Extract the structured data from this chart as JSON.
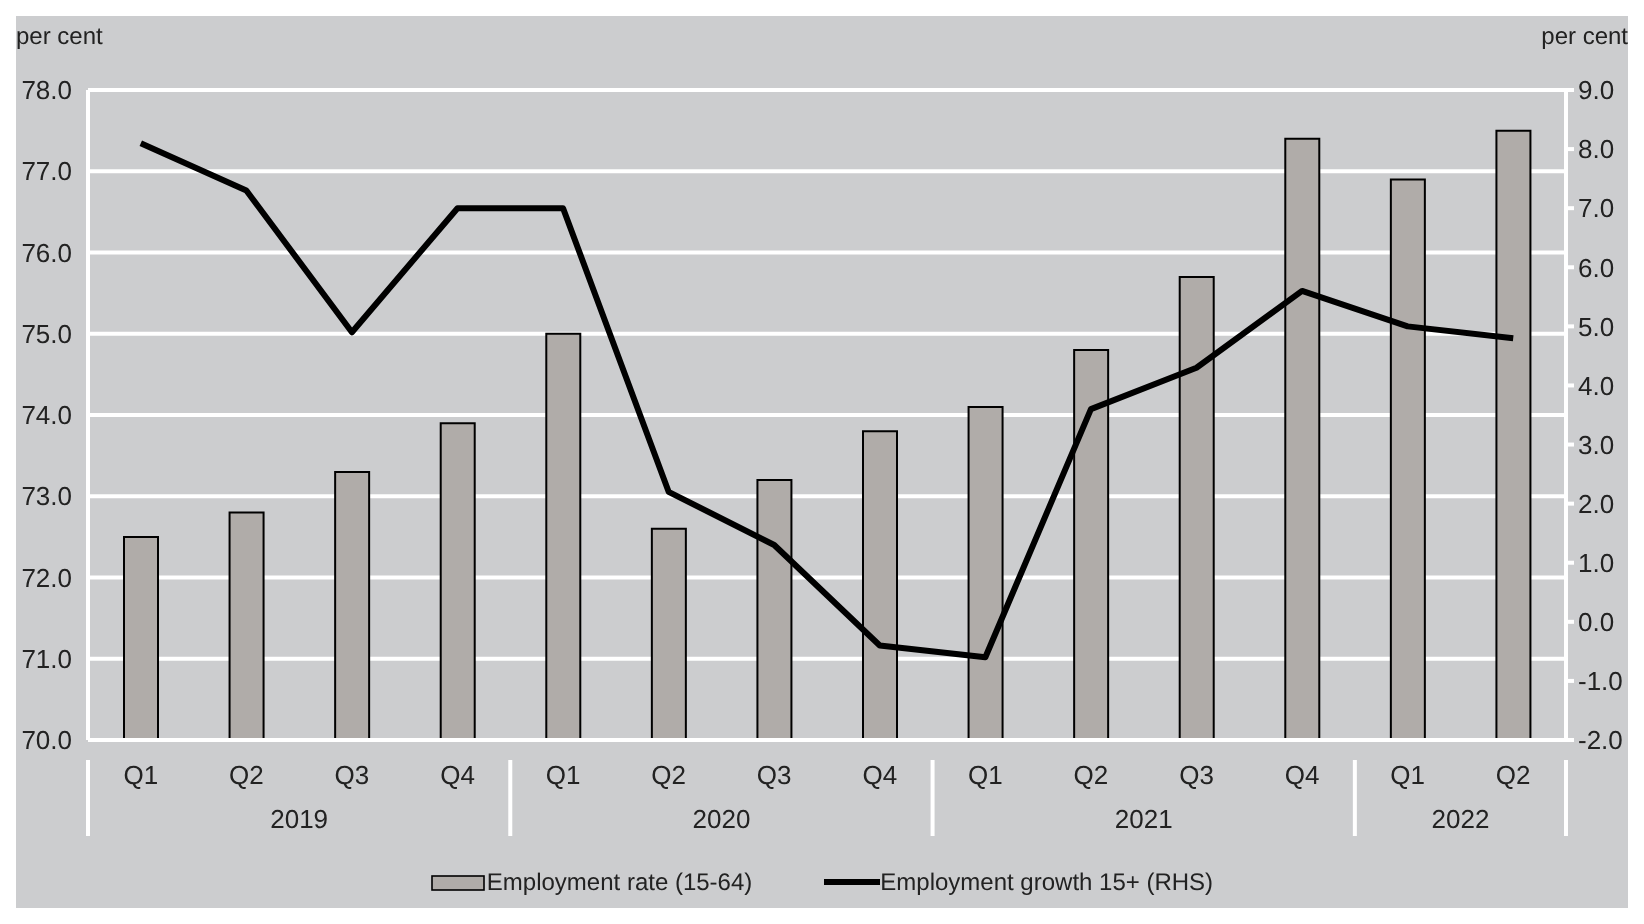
{
  "chart_data": {
    "type": "bar",
    "ylabel": "per cent",
    "y2label": "per cent",
    "categories": [
      "Q1",
      "Q2",
      "Q3",
      "Q4",
      "Q1",
      "Q2",
      "Q3",
      "Q4",
      "Q1",
      "Q2",
      "Q3",
      "Q4",
      "Q1",
      "Q2"
    ],
    "annotations": [
      "2019",
      "2020",
      "2021",
      "2022"
    ],
    "series": [
      {
        "name": "Employment rate (15-64)",
        "color": "#b0aca9",
        "values": [
          72.5,
          72.8,
          73.3,
          73.9,
          75.0,
          72.6,
          73.2,
          73.8,
          74.1,
          74.8,
          75.7,
          77.4,
          76.9,
          77.5
        ]
      },
      {
        "name": "Employment growth 15+ (RHS)",
        "type": "line",
        "axis": "y2",
        "color": "#000000",
        "values": [
          8.1,
          7.3,
          4.9,
          7.0,
          7.0,
          2.2,
          1.3,
          -0.4,
          -0.6,
          3.6,
          4.3,
          5.6,
          5.0,
          4.8
        ]
      }
    ],
    "ylim": [
      70,
      78
    ],
    "yticks": [
      {
        "value": 70,
        "label": "70.0"
      },
      {
        "value": 71,
        "label": "71.0"
      },
      {
        "value": 72,
        "label": "72.0"
      },
      {
        "value": 73,
        "label": "73.0"
      },
      {
        "value": 74,
        "label": "74.0"
      },
      {
        "value": 75,
        "label": "75.0"
      },
      {
        "value": 76,
        "label": "76.0"
      },
      {
        "value": 77,
        "label": "77.0"
      },
      {
        "value": 78,
        "label": "78.0"
      }
    ],
    "y2lim": [
      -2,
      9
    ],
    "y2ticks": [
      {
        "value": -2,
        "label": "-2.0"
      },
      {
        "value": -1,
        "label": "-1.0"
      },
      {
        "value": 0,
        "label": "0.0"
      },
      {
        "value": 1,
        "label": "1.0"
      },
      {
        "value": 2,
        "label": "2.0"
      },
      {
        "value": 3,
        "label": "3.0"
      },
      {
        "value": 4,
        "label": "4.0"
      },
      {
        "value": 5,
        "label": "5.0"
      },
      {
        "value": 6,
        "label": "6.0"
      },
      {
        "value": 7,
        "label": "7.0"
      },
      {
        "value": 8,
        "label": "8.0"
      },
      {
        "value": 9,
        "label": "9.0"
      }
    ],
    "grid": "y",
    "legend": "bottom",
    "marker": "none",
    "line_style": "solid"
  }
}
